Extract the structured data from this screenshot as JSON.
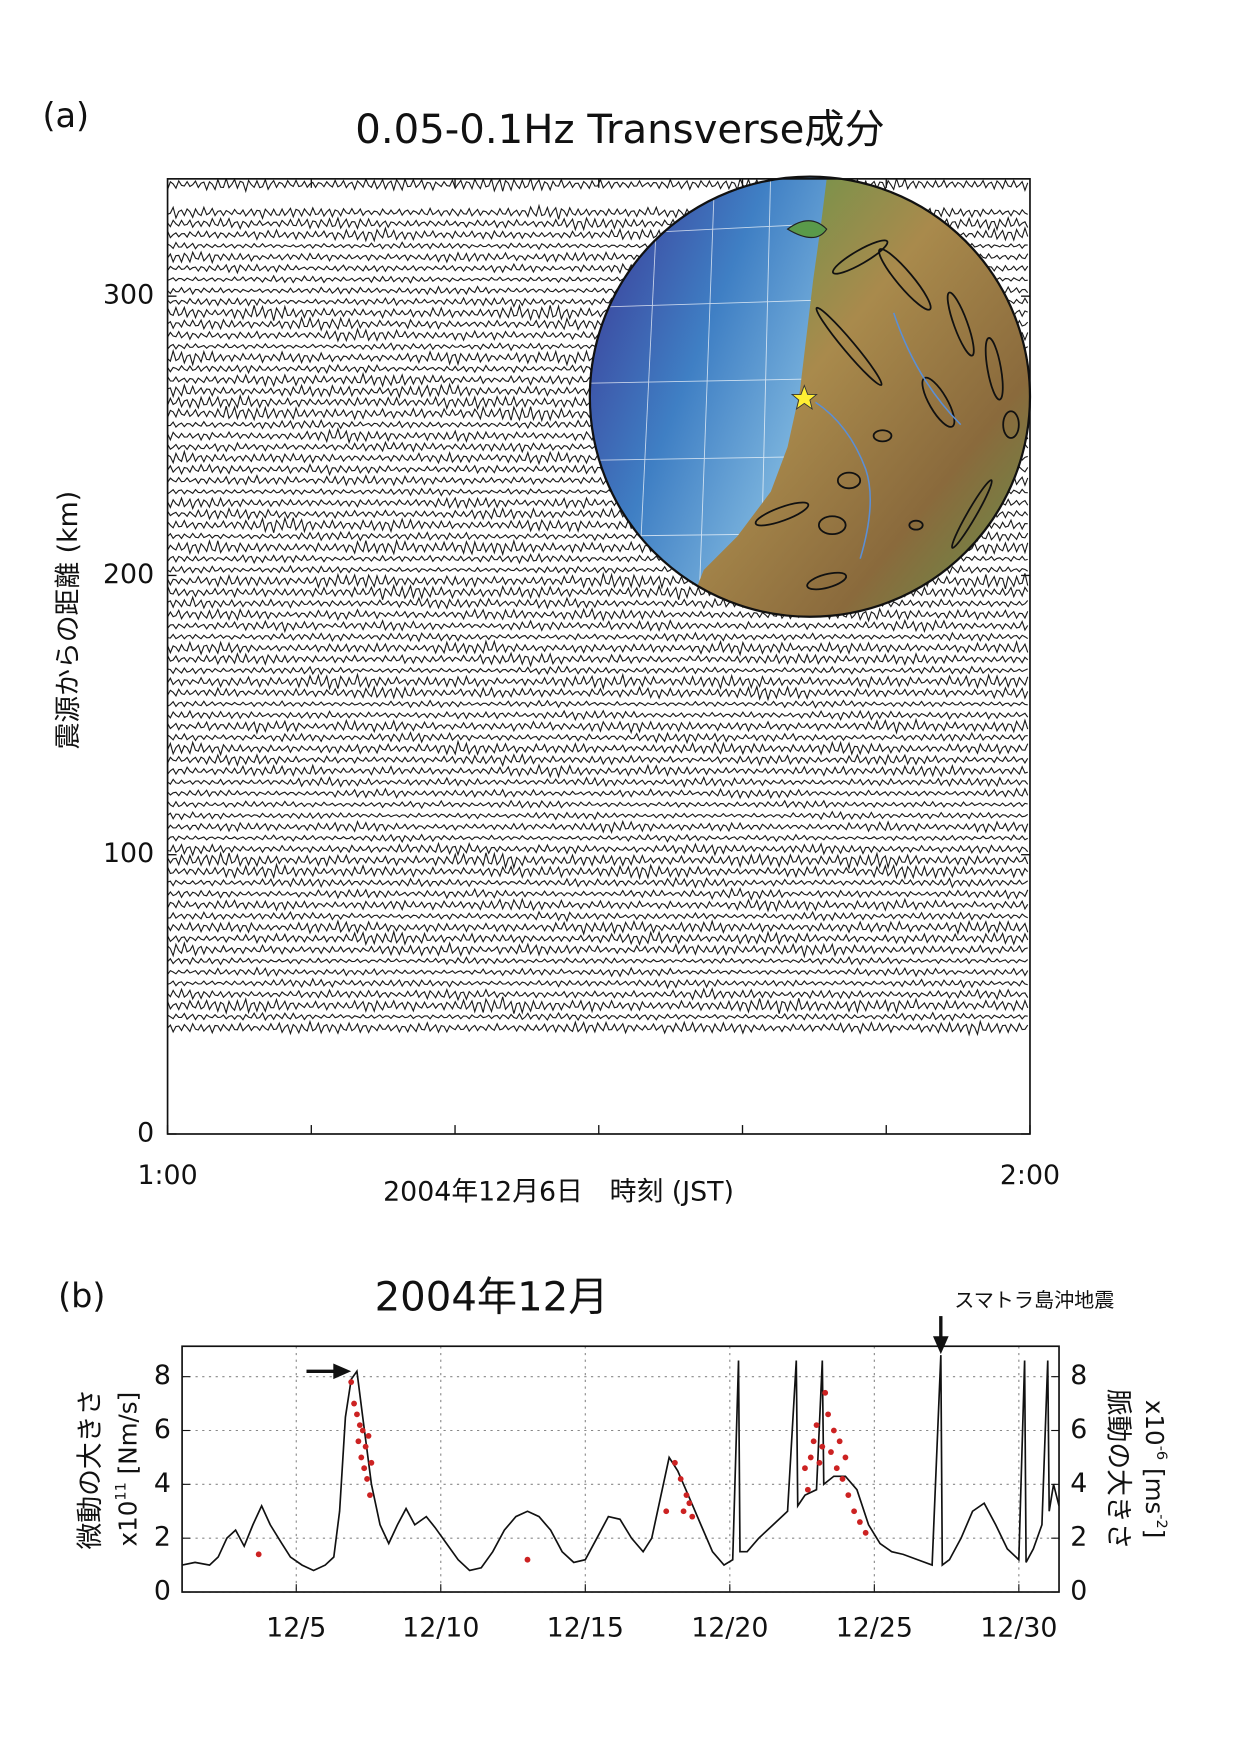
{
  "chart_data": [
    {
      "type": "waveform",
      "panel_label": "(a)",
      "title": "0.05-0.1Hz Transverse成分",
      "ylabel": "震源からの距離 (km)",
      "xlabel": "2004年12月6日　時刻 (JST)",
      "xlim": [
        0,
        60
      ],
      "xticks": [
        {
          "value": 0,
          "label": "1:00"
        },
        {
          "value": 60,
          "label": "2:00"
        }
      ],
      "xminor_ticks": [
        10,
        20,
        30,
        40,
        50
      ],
      "ylim": [
        0,
        342
      ],
      "yticks": [
        0,
        100,
        200,
        300
      ],
      "color": "#1a1a1a",
      "trace_distances": [
        38,
        42,
        46,
        50,
        54,
        58,
        62,
        66,
        70,
        74,
        78,
        82,
        86,
        90,
        94,
        98,
        102,
        106,
        110,
        114,
        118,
        122,
        126,
        130,
        134,
        138,
        142,
        146,
        150,
        154,
        158,
        162,
        166,
        170,
        174,
        178,
        182,
        186,
        190,
        194,
        198,
        202,
        206,
        210,
        214,
        218,
        222,
        226,
        230,
        234,
        238,
        242,
        246,
        250,
        254,
        258,
        262,
        266,
        270,
        274,
        278,
        282,
        286,
        290,
        294,
        298,
        302,
        306,
        310,
        314,
        318,
        322,
        326,
        330,
        340
      ]
    },
    {
      "type": "line",
      "panel_label": "(b)",
      "title": "2004年12月",
      "ylabel": {
        "text": "微動の大きさ",
        "base": "x10",
        "sup": "11",
        "unit": " [Nm/s]"
      },
      "y2label": {
        "text": "脈動の大きさ",
        "base": "x10",
        "sup": "-6",
        "unit": " [ms",
        "unit_sup": "-2",
        "unit_end": "]"
      },
      "xlim": [
        1.05,
        31.39
      ],
      "xticks": [
        {
          "value": 5,
          "label": "12/5"
        },
        {
          "value": 10,
          "label": "12/10"
        },
        {
          "value": 15,
          "label": "12/15"
        },
        {
          "value": 20,
          "label": "12/20"
        },
        {
          "value": 25,
          "label": "12/25"
        },
        {
          "value": 30,
          "label": "12/30"
        }
      ],
      "ylim": [
        0,
        9.13
      ],
      "yticks": [
        0,
        2,
        4,
        6,
        8
      ],
      "y2lim": [
        0,
        9.13
      ],
      "y2ticks": [
        0,
        2,
        4,
        6,
        8
      ],
      "grid": true,
      "series": [
        {
          "type": "line",
          "color": "#111111",
          "x": [
            1.05,
            1.5,
            2,
            2.3,
            2.6,
            2.9,
            3.2,
            3.5,
            3.8,
            4.1,
            4.5,
            4.8,
            5.2,
            5.6,
            6.0,
            6.3,
            6.5,
            6.7,
            6.9,
            7.1,
            7.3,
            7.6,
            7.9,
            8.2,
            8.5,
            8.8,
            9.1,
            9.5,
            9.8,
            10.2,
            10.6,
            11.0,
            11.4,
            11.8,
            12.2,
            12.6,
            13.0,
            13.4,
            13.8,
            14.2,
            14.6,
            15.0,
            15.4,
            15.8,
            16.2,
            16.6,
            17.0,
            17.3,
            17.6,
            17.9,
            18.2,
            18.6,
            19.0,
            19.4,
            19.8,
            20.1,
            20.3,
            20.35,
            20.6,
            21.0,
            21.5,
            22.0,
            22.3,
            22.35,
            22.6,
            23.0,
            23.2,
            23.25,
            23.6,
            24.0,
            24.4,
            24.8,
            25.2,
            25.6,
            26.0,
            26.5,
            27.0,
            27.3,
            27.35,
            27.6,
            28.0,
            28.4,
            28.8,
            29.2,
            29.6,
            30.0,
            30.2,
            30.25,
            30.5,
            30.8,
            31.0,
            31.05,
            31.2,
            31.39
          ],
          "values": [
            1.0,
            1.1,
            1.0,
            1.3,
            2.0,
            2.3,
            1.7,
            2.5,
            3.2,
            2.5,
            1.8,
            1.3,
            1.0,
            0.8,
            1.0,
            1.3,
            3.0,
            6.5,
            7.9,
            8.2,
            6.5,
            4.0,
            2.5,
            1.8,
            2.5,
            3.1,
            2.5,
            2.8,
            2.4,
            1.8,
            1.2,
            0.8,
            0.9,
            1.5,
            2.3,
            2.8,
            3.0,
            2.8,
            2.3,
            1.5,
            1.1,
            1.2,
            2.0,
            2.8,
            2.7,
            2.0,
            1.5,
            2.0,
            3.5,
            5.0,
            4.5,
            3.5,
            2.5,
            1.5,
            1.0,
            1.2,
            8.6,
            1.5,
            1.5,
            2.0,
            2.5,
            3.0,
            8.6,
            3.2,
            3.6,
            3.8,
            8.6,
            4.0,
            4.3,
            4.3,
            3.8,
            2.5,
            1.8,
            1.5,
            1.4,
            1.2,
            1.0,
            8.8,
            1.0,
            1.2,
            2.0,
            3.0,
            3.3,
            2.5,
            1.6,
            1.2,
            8.6,
            1.1,
            1.6,
            2.5,
            8.6,
            3.0,
            4.0,
            3.2
          ]
        },
        {
          "type": "scatter",
          "color": "#cc2222",
          "axis": "y2",
          "x": [
            3.7,
            6.9,
            7.0,
            7.1,
            7.2,
            7.15,
            7.3,
            7.25,
            7.4,
            7.35,
            7.5,
            7.45,
            7.6,
            7.55,
            13.0,
            18.1,
            18.3,
            18.5,
            18.4,
            18.6,
            18.7,
            17.8,
            22.6,
            22.8,
            22.9,
            23.0,
            23.1,
            23.2,
            23.3,
            23.4,
            23.5,
            23.6,
            23.7,
            23.8,
            23.9,
            24.0,
            24.1,
            24.3,
            24.5,
            24.7,
            22.7
          ],
          "values": [
            1.4,
            7.8,
            7.0,
            6.6,
            6.2,
            5.6,
            6.0,
            5.0,
            5.4,
            4.6,
            5.8,
            4.2,
            4.8,
            3.6,
            1.2,
            4.8,
            4.2,
            3.6,
            3.0,
            3.3,
            2.8,
            3.0,
            4.6,
            5.0,
            5.6,
            6.2,
            4.8,
            5.4,
            7.4,
            6.6,
            5.2,
            6.0,
            4.6,
            5.6,
            4.2,
            5.0,
            3.6,
            3.0,
            2.6,
            2.2,
            3.8
          ]
        }
      ],
      "annotations": [
        {
          "text": "スマトラ島沖地震",
          "x": 27.3
        },
        {
          "x": 6.9,
          "y": 8.2
        }
      ]
    }
  ]
}
